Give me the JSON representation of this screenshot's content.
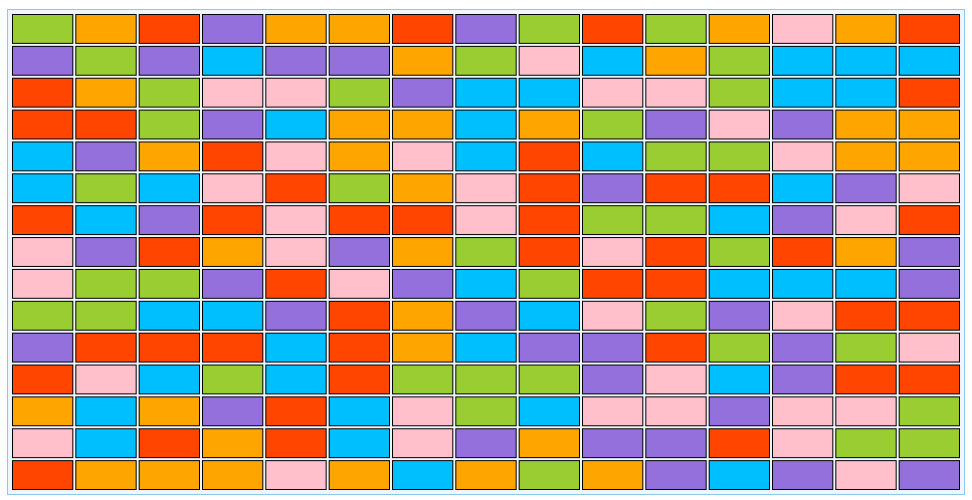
{
  "board": {
    "colors": {
      "G": "#9acd32",
      "O": "#ffa500",
      "R": "#ff4500",
      "P": "#9370db",
      "B": "#00bfff",
      "K": "#ffc0cb"
    },
    "rows": [
      [
        "G",
        "O",
        "R",
        "P",
        "O",
        "O",
        "R",
        "P",
        "G",
        "R",
        "G",
        "O",
        "K",
        "O",
        "R"
      ],
      [
        "P",
        "G",
        "P",
        "B",
        "P",
        "P",
        "O",
        "G",
        "K",
        "B",
        "O",
        "G",
        "B",
        "B",
        "B"
      ],
      [
        "R",
        "O",
        "G",
        "K",
        "K",
        "G",
        "P",
        "B",
        "B",
        "K",
        "K",
        "G",
        "B",
        "B",
        "R"
      ],
      [
        "R",
        "R",
        "G",
        "P",
        "B",
        "O",
        "O",
        "B",
        "O",
        "G",
        "P",
        "K",
        "P",
        "O",
        "O"
      ],
      [
        "B",
        "P",
        "O",
        "R",
        "K",
        "O",
        "K",
        "B",
        "R",
        "B",
        "G",
        "G",
        "K",
        "O",
        "O"
      ],
      [
        "B",
        "G",
        "B",
        "K",
        "R",
        "G",
        "O",
        "K",
        "R",
        "P",
        "R",
        "R",
        "B",
        "P",
        "K"
      ],
      [
        "R",
        "B",
        "P",
        "R",
        "K",
        "R",
        "R",
        "K",
        "R",
        "G",
        "G",
        "B",
        "P",
        "K",
        "R"
      ],
      [
        "K",
        "P",
        "R",
        "O",
        "K",
        "P",
        "O",
        "G",
        "R",
        "K",
        "R",
        "G",
        "R",
        "O",
        "P"
      ],
      [
        "K",
        "G",
        "G",
        "P",
        "R",
        "K",
        "P",
        "B",
        "G",
        "R",
        "R",
        "B",
        "B",
        "B",
        "P"
      ],
      [
        "G",
        "G",
        "B",
        "B",
        "P",
        "R",
        "O",
        "P",
        "B",
        "K",
        "G",
        "P",
        "K",
        "R",
        "R"
      ],
      [
        "P",
        "R",
        "R",
        "R",
        "B",
        "R",
        "O",
        "B",
        "P",
        "P",
        "R",
        "G",
        "P",
        "G",
        "K"
      ],
      [
        "R",
        "K",
        "B",
        "G",
        "B",
        "R",
        "G",
        "G",
        "G",
        "P",
        "K",
        "B",
        "P",
        "R",
        "R"
      ],
      [
        "O",
        "B",
        "O",
        "P",
        "R",
        "B",
        "K",
        "G",
        "B",
        "K",
        "K",
        "P",
        "K",
        "K",
        "G"
      ],
      [
        "K",
        "B",
        "R",
        "O",
        "R",
        "B",
        "K",
        "P",
        "O",
        "P",
        "P",
        "R",
        "K",
        "G",
        "G"
      ],
      [
        "R",
        "O",
        "O",
        "O",
        "K",
        "O",
        "B",
        "O",
        "G",
        "O",
        "P",
        "B",
        "P",
        "K",
        "P"
      ]
    ]
  }
}
